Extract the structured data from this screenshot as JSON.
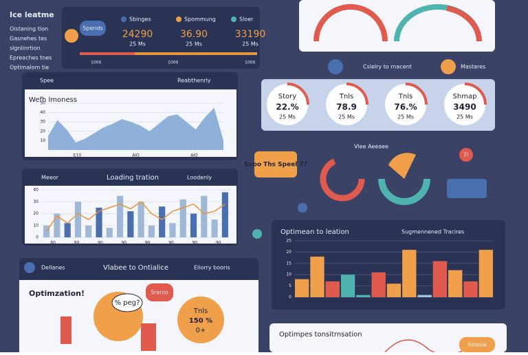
{
  "sidebar": {
    "title": "Ice leatme",
    "lines": [
      "Oistaning tlon",
      "Gasnehes tes",
      "slgnlinrtion",
      "Epreaches tnes",
      "Optimalom tie"
    ]
  },
  "summary": {
    "badge": "Spends",
    "legend": [
      "Sbinges",
      "Spommung",
      "Sloer"
    ],
    "stats": [
      {
        "value": "24290",
        "sub": "25 Ms"
      },
      {
        "value": "36.90",
        "sub": "25 Ms"
      },
      {
        "value": "33190",
        "sub": "25 Ms"
      }
    ],
    "foot": [
      "1000",
      "1000",
      "1000"
    ]
  },
  "links": [
    "Cslelry to rnacent",
    "Mastares"
  ],
  "area_panel": {
    "tab": "Spee",
    "menu": "Reabthenrly",
    "chart": {
      "type": "area",
      "title": "Wefh lmoness",
      "values": [
        15,
        32,
        22,
        8,
        12,
        18,
        24,
        28,
        33,
        30,
        26,
        20,
        28,
        36,
        38,
        30,
        22,
        35,
        45,
        10
      ],
      "ylim": [
        0,
        50
      ],
      "yticks": [
        10,
        20,
        30,
        40,
        50
      ],
      "x_labels": [
        "E10",
        "AIO",
        "AIO"
      ],
      "color": "#8fb1d9"
    }
  },
  "combo_panel": {
    "tab": "Meeor",
    "title": "Loading tration",
    "menu": "Loodenly",
    "chart": {
      "type": "bar-line",
      "bars": [
        10,
        20,
        12,
        30,
        10,
        25,
        8,
        35,
        22,
        30,
        10,
        26,
        12,
        32,
        20,
        35,
        15,
        38
      ],
      "line": [
        5,
        18,
        12,
        20,
        15,
        22,
        25,
        28,
        24,
        30,
        20,
        15,
        22,
        25,
        28,
        20,
        22,
        28
      ],
      "ylim": [
        0,
        40
      ],
      "yticks": [
        0,
        10,
        20,
        30,
        40
      ],
      "color": "#9fb8d6",
      "line_color": "#e8963a",
      "x_labels": [
        "60",
        "90",
        "90",
        "90",
        "90",
        "90",
        "90",
        "90"
      ]
    }
  },
  "stats": [
    {
      "name": "Story",
      "value": "22.%",
      "sub": "25 Ms"
    },
    {
      "name": "Tnls",
      "value": "78.9",
      "sub": "25 Ms"
    },
    {
      "name": "Tnls",
      "value": "76.%",
      "sub": "25 Ms"
    },
    {
      "name": "Shmap",
      "value": "3490",
      "sub": "25 Ms"
    }
  ],
  "bubble": "Sooo Ths Speel 7?",
  "mid_label": "Vlee Aeeaee",
  "alert": "7!",
  "bar_panel": {
    "title": "Optimean to leation",
    "menu": "Sugmennened Tracires",
    "chart": {
      "type": "bar",
      "values": [
        8,
        18,
        7,
        10,
        1,
        11,
        6,
        21,
        1,
        16,
        12,
        7,
        21
      ],
      "colors": [
        "#f0a04b",
        "#f0a04b",
        "#e05a4e",
        "#4fb3b0",
        "#4fb3b0",
        "#e05a4e",
        "#f0a04b",
        "#f0a04b",
        "#9ec4e0",
        "#e05a4e",
        "#f0a04b",
        "#e05a4e",
        "#f0a04b"
      ],
      "ylim": [
        0,
        25
      ],
      "yticks": [
        0,
        5,
        10,
        15,
        20,
        25
      ]
    }
  },
  "bottom_panel": {
    "tab": "Dellanes",
    "title": "Vlabee to Ontialice",
    "menu": "Eliorry booris",
    "heading": "Optimzation!",
    "bubble1": "% peg?",
    "bubble2": "Srenio",
    "card": {
      "title": "Tnls",
      "value": "150 %",
      "sub": "0+"
    }
  },
  "trans_panel": {
    "title": "Optimpes tonsitrnsation",
    "badge": "Ssiesie"
  }
}
